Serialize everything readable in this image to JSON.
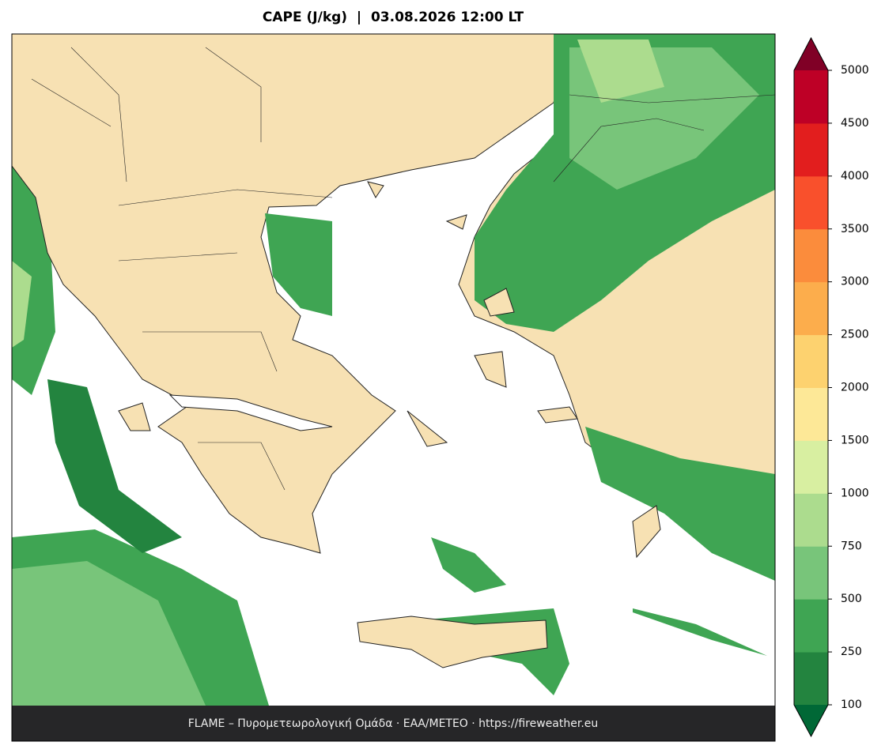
{
  "title": "CAPE (J/kg)  |  03.08.2026 12:00 LT",
  "footer": "FLAME – Πυρομετεωρολογική Ομάδα · ΕΑΑ/METEO · https://fireweather.eu",
  "colorbar": {
    "ticks": [
      100,
      250,
      500,
      750,
      1000,
      1500,
      2000,
      2500,
      3000,
      3500,
      4000,
      4500,
      5000
    ],
    "colors": [
      "#23843f",
      "#3fa553",
      "#78c57a",
      "#acdc8e",
      "#d8efa1",
      "#fde897",
      "#fdd26f",
      "#fcad4c",
      "#fb8c3c",
      "#f9502c",
      "#e21e1e",
      "#be0026"
    ],
    "under_color": "#006836",
    "over_color": "#800026"
  }
}
